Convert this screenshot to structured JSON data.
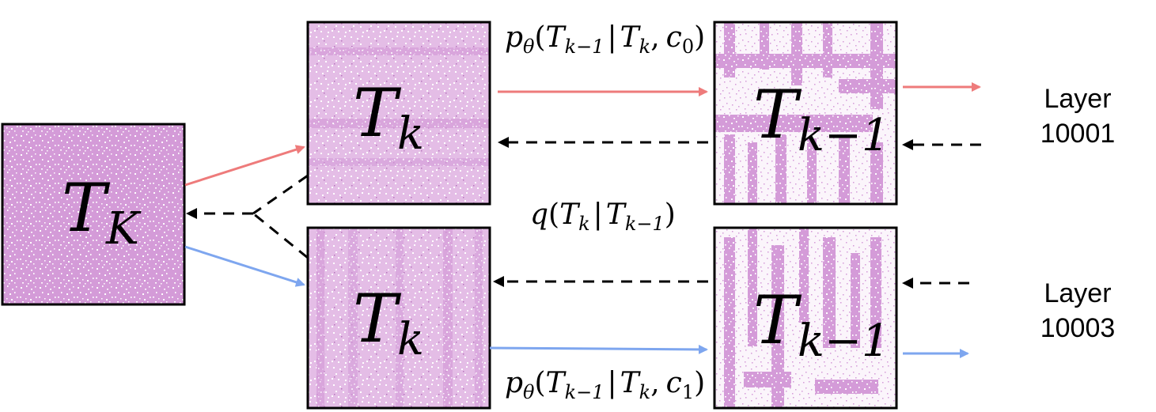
{
  "nodes": {
    "tK": {
      "main": "T",
      "sub": "K"
    },
    "tk_top": {
      "main": "T",
      "sub": "k"
    },
    "tk_bottom": {
      "main": "T",
      "sub": "k"
    },
    "tkm1_top": {
      "main": "T",
      "sub": "k−1"
    },
    "tkm1_bottom": {
      "main": "T",
      "sub": "k−1"
    }
  },
  "formulas": {
    "p_top": {
      "p": "p",
      "theta": "θ",
      "open": "(",
      "T1": "T",
      "s1": "k−1",
      "bar": "|",
      "T2": "T",
      "s2": "k",
      "comma": ",",
      "c": "c",
      "cs": "0",
      "close": ")"
    },
    "q_mid": {
      "q": "q",
      "open": "(",
      "T1": "T",
      "s1": "k",
      "bar": "|",
      "T2": "T",
      "s2": "k−1",
      "close": ")"
    },
    "p_bottom": {
      "p": "p",
      "theta": "θ",
      "open": "(",
      "T1": "T",
      "s1": "k−1",
      "bar": "|",
      "T2": "T",
      "s2": "k",
      "comma": ",",
      "c": "c",
      "cs": "1",
      "close": ")"
    }
  },
  "layers": {
    "top": {
      "line1": "Layer",
      "line2": "10001"
    },
    "bottom": {
      "line1": "Layer",
      "line2": "10003"
    }
  },
  "colors": {
    "tile": "#d49bd8",
    "tile_bg": "#f6ecf7",
    "red_arrow": "#ee7b7b",
    "blue_arrow": "#7ea6ef",
    "dashed": "#000000"
  }
}
